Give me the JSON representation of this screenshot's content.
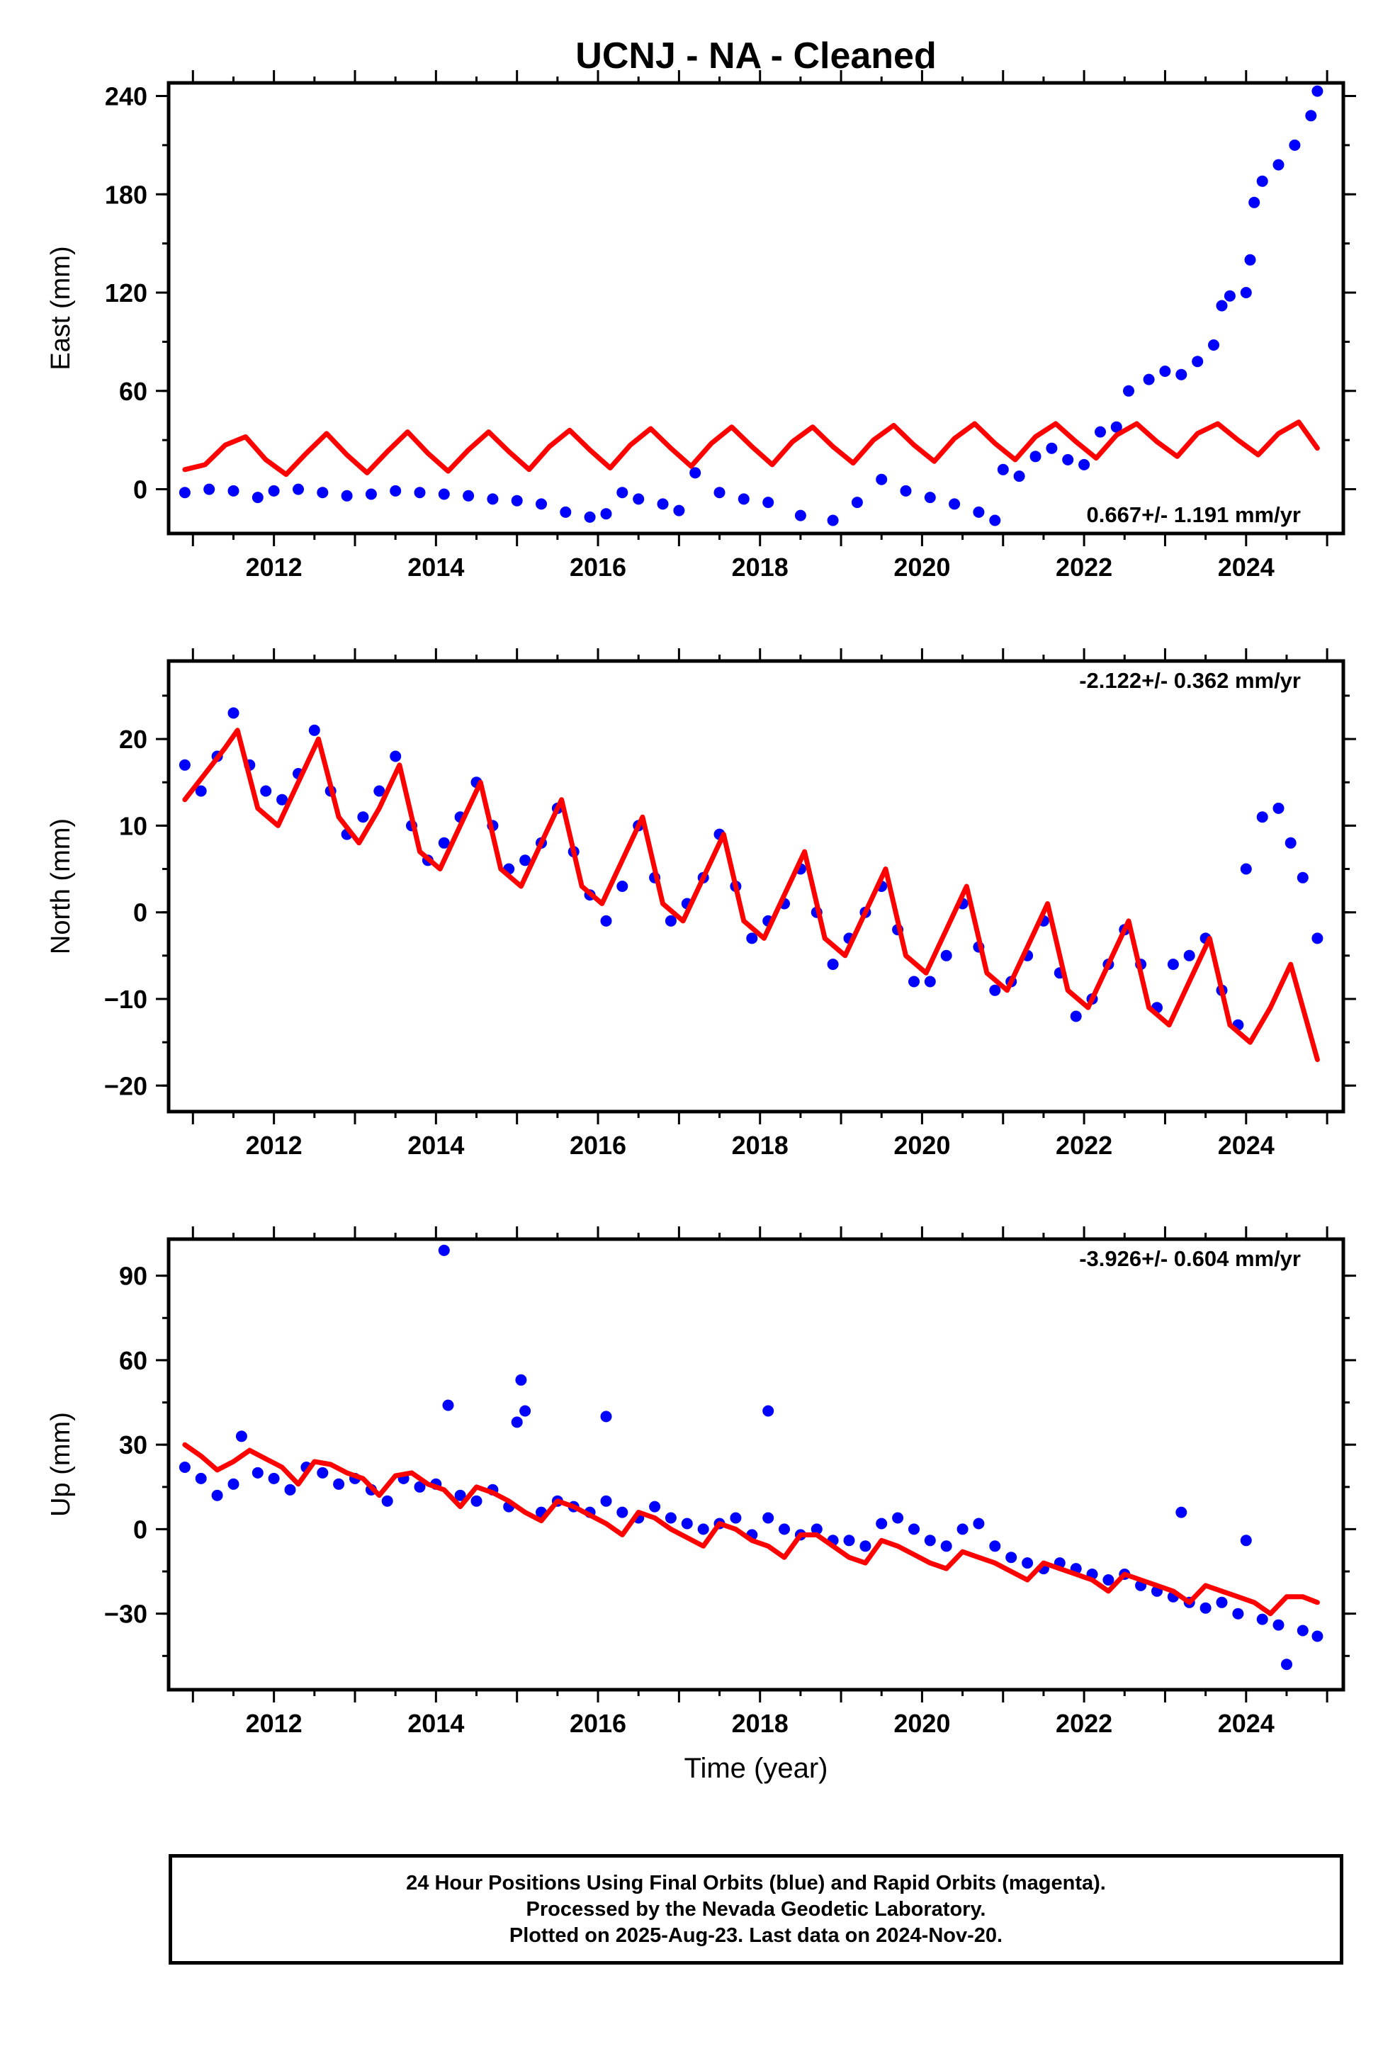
{
  "title": "UCNJ  - NA - Cleaned",
  "colors": {
    "final_orbits": "#0000ff",
    "model": "#ff0000",
    "frame": "#000000",
    "background": "#ffffff"
  },
  "chart_data": [
    {
      "type": "scatter",
      "ylabel": "East (mm)",
      "xlabel": "",
      "xlim": [
        2010.7,
        2025.2
      ],
      "ylim": [
        -27,
        248
      ],
      "xticks": [
        2012,
        2014,
        2016,
        2018,
        2020,
        2022,
        2024
      ],
      "xtick_labels": [
        "2012",
        "2014",
        "2016",
        "2018",
        "2020",
        "2022",
        "2024"
      ],
      "yticks": [
        0,
        60,
        120,
        180,
        240
      ],
      "ytick_labels": [
        "0",
        "60",
        "120",
        "180",
        "240"
      ],
      "rate_label": "0.667+/- 1.191 mm/yr",
      "rate_label_position": "bottom-right",
      "series": [
        {
          "role": "observations",
          "color": "#0000ff",
          "x": [
            2010.9,
            2011.2,
            2011.5,
            2011.8,
            2012.0,
            2012.3,
            2012.6,
            2012.9,
            2013.2,
            2013.5,
            2013.8,
            2014.1,
            2014.4,
            2014.7,
            2015.0,
            2015.3,
            2015.6,
            2015.9,
            2016.1,
            2016.3,
            2016.5,
            2016.8,
            2017.0,
            2017.2,
            2017.5,
            2017.8,
            2018.1,
            2018.5,
            2018.9,
            2019.2,
            2019.5,
            2019.8,
            2020.1,
            2020.4,
            2020.7,
            2020.9,
            2021.0,
            2021.2,
            2021.4,
            2021.6,
            2021.8,
            2022.0,
            2022.2,
            2022.4,
            2022.55,
            2022.8,
            2023.0,
            2023.2,
            2023.4,
            2023.6,
            2023.7,
            2023.8,
            2024.0,
            2024.05,
            2024.1,
            2024.2,
            2024.4,
            2024.6,
            2024.8,
            2024.88
          ],
          "y": [
            -2,
            0,
            -1,
            -5,
            -1,
            0,
            -2,
            -4,
            -3,
            -1,
            -2,
            -3,
            -4,
            -6,
            -7,
            -9,
            -14,
            -17,
            -15,
            -2,
            -6,
            -9,
            -13,
            10,
            -2,
            -6,
            -8,
            -16,
            -19,
            -8,
            6,
            -1,
            -5,
            -9,
            -14,
            -19,
            12,
            8,
            20,
            25,
            18,
            15,
            35,
            38,
            60,
            67,
            72,
            70,
            78,
            88,
            112,
            118,
            120,
            140,
            175,
            188,
            198,
            210,
            228,
            243
          ]
        },
        {
          "role": "model",
          "color": "#ff0000",
          "x": [
            2010.9,
            2011.15,
            2011.4,
            2011.65,
            2011.9,
            2012.15,
            2012.4,
            2012.65,
            2012.9,
            2013.15,
            2013.4,
            2013.65,
            2013.9,
            2014.15,
            2014.4,
            2014.65,
            2014.9,
            2015.15,
            2015.4,
            2015.65,
            2015.9,
            2016.15,
            2016.4,
            2016.65,
            2016.9,
            2017.15,
            2017.4,
            2017.65,
            2017.9,
            2018.15,
            2018.4,
            2018.65,
            2018.9,
            2019.15,
            2019.4,
            2019.65,
            2019.9,
            2020.15,
            2020.4,
            2020.65,
            2020.9,
            2021.15,
            2021.4,
            2021.65,
            2021.9,
            2022.15,
            2022.4,
            2022.65,
            2022.9,
            2023.15,
            2023.4,
            2023.65,
            2023.9,
            2024.15,
            2024.4,
            2024.65,
            2024.88
          ],
          "y": [
            12,
            15,
            27,
            32,
            18,
            9,
            22,
            34,
            21,
            10,
            23,
            35,
            22,
            11,
            24,
            35,
            23,
            12,
            26,
            36,
            24,
            13,
            27,
            37,
            25,
            14,
            28,
            38,
            26,
            15,
            29,
            38,
            26,
            16,
            30,
            39,
            27,
            17,
            31,
            40,
            28,
            18,
            32,
            40,
            29,
            19,
            33,
            40,
            29,
            20,
            34,
            40,
            30,
            21,
            34,
            41,
            25
          ]
        }
      ]
    },
    {
      "type": "scatter",
      "ylabel": "North (mm)",
      "xlabel": "",
      "xlim": [
        2010.7,
        2025.2
      ],
      "ylim": [
        -23,
        29
      ],
      "xticks": [
        2012,
        2014,
        2016,
        2018,
        2020,
        2022,
        2024
      ],
      "xtick_labels": [
        "2012",
        "2014",
        "2016",
        "2018",
        "2020",
        "2022",
        "2024"
      ],
      "yticks": [
        -20,
        -10,
        0,
        10,
        20
      ],
      "ytick_labels": [
        "−20",
        "−10",
        "0",
        "10",
        "20"
      ],
      "rate_label": "-2.122+/- 0.362 mm/yr",
      "rate_label_position": "top-right",
      "series": [
        {
          "role": "observations",
          "color": "#0000ff",
          "x": [
            2010.9,
            2011.1,
            2011.3,
            2011.5,
            2011.7,
            2011.9,
            2012.1,
            2012.3,
            2012.5,
            2012.7,
            2012.9,
            2013.1,
            2013.3,
            2013.5,
            2013.7,
            2013.9,
            2014.1,
            2014.3,
            2014.5,
            2014.7,
            2014.9,
            2015.1,
            2015.3,
            2015.5,
            2015.7,
            2015.9,
            2016.1,
            2016.3,
            2016.5,
            2016.7,
            2016.9,
            2017.1,
            2017.3,
            2017.5,
            2017.7,
            2017.9,
            2018.1,
            2018.3,
            2018.5,
            2018.7,
            2018.9,
            2019.1,
            2019.3,
            2019.5,
            2019.7,
            2019.9,
            2020.1,
            2020.3,
            2020.5,
            2020.7,
            2020.9,
            2021.1,
            2021.3,
            2021.5,
            2021.7,
            2021.9,
            2022.1,
            2022.3,
            2022.5,
            2022.7,
            2022.9,
            2023.1,
            2023.3,
            2023.5,
            2023.7,
            2023.9,
            2024.0,
            2024.2,
            2024.4,
            2024.55,
            2024.7,
            2024.88
          ],
          "y": [
            17,
            14,
            18,
            23,
            17,
            14,
            13,
            16,
            21,
            14,
            9,
            11,
            14,
            18,
            10,
            6,
            8,
            11,
            15,
            10,
            5,
            6,
            8,
            12,
            7,
            2,
            -1,
            3,
            10,
            4,
            -1,
            1,
            4,
            9,
            3,
            -3,
            -1,
            1,
            5,
            0,
            -6,
            -3,
            0,
            3,
            -2,
            -8,
            -8,
            -5,
            1,
            -4,
            -9,
            -8,
            -5,
            -1,
            -7,
            -12,
            -10,
            -6,
            -2,
            -6,
            -11,
            -6,
            -5,
            -3,
            -9,
            -13,
            5,
            11,
            12,
            8,
            4,
            -3
          ]
        },
        {
          "role": "model",
          "color": "#ff0000",
          "x": [
            2010.9,
            2011.15,
            2011.4,
            2011.55,
            2011.8,
            2012.05,
            2012.3,
            2012.55,
            2012.8,
            2013.05,
            2013.3,
            2013.55,
            2013.8,
            2014.05,
            2014.3,
            2014.55,
            2014.8,
            2015.05,
            2015.3,
            2015.55,
            2015.8,
            2016.05,
            2016.3,
            2016.55,
            2016.8,
            2017.05,
            2017.3,
            2017.55,
            2017.8,
            2018.05,
            2018.3,
            2018.55,
            2018.8,
            2019.05,
            2019.3,
            2019.55,
            2019.8,
            2020.05,
            2020.3,
            2020.55,
            2020.8,
            2021.05,
            2021.3,
            2021.55,
            2021.8,
            2022.05,
            2022.3,
            2022.55,
            2022.8,
            2023.05,
            2023.3,
            2023.55,
            2023.8,
            2024.05,
            2024.3,
            2024.55,
            2024.88
          ],
          "y": [
            13,
            16,
            19,
            21,
            12,
            10,
            15,
            20,
            11,
            8,
            12,
            17,
            7,
            5,
            10,
            15,
            5,
            3,
            8,
            13,
            3,
            1,
            6,
            11,
            1,
            -1,
            4,
            9,
            -1,
            -3,
            2,
            7,
            -3,
            -5,
            0,
            5,
            -5,
            -7,
            -2,
            3,
            -7,
            -9,
            -4,
            1,
            -9,
            -11,
            -6,
            -1,
            -11,
            -13,
            -8,
            -3,
            -13,
            -15,
            -11,
            -6,
            -17
          ]
        }
      ]
    },
    {
      "type": "scatter",
      "ylabel": "Up (mm)",
      "xlabel": "Time (year)",
      "xlim": [
        2010.7,
        2025.2
      ],
      "ylim": [
        -57,
        103
      ],
      "xticks": [
        2012,
        2014,
        2016,
        2018,
        2020,
        2022,
        2024
      ],
      "xtick_labels": [
        "2012",
        "2014",
        "2016",
        "2018",
        "2020",
        "2022",
        "2024"
      ],
      "yticks": [
        -30,
        0,
        30,
        60,
        90
      ],
      "ytick_labels": [
        "−30",
        "0",
        "30",
        "60",
        "90"
      ],
      "rate_label": "-3.926+/- 0.604 mm/yr",
      "rate_label_position": "top-right",
      "series": [
        {
          "role": "observations",
          "color": "#0000ff",
          "x": [
            2010.9,
            2011.1,
            2011.3,
            2011.5,
            2011.6,
            2011.8,
            2012.0,
            2012.2,
            2012.4,
            2012.6,
            2012.8,
            2013.0,
            2013.2,
            2013.4,
            2013.6,
            2013.8,
            2014.0,
            2014.1,
            2014.15,
            2014.3,
            2014.5,
            2014.7,
            2014.9,
            2015.0,
            2015.05,
            2015.1,
            2015.3,
            2015.5,
            2015.7,
            2015.9,
            2016.1,
            2016.1,
            2016.3,
            2016.5,
            2016.7,
            2016.9,
            2017.1,
            2017.3,
            2017.5,
            2017.7,
            2017.9,
            2018.1,
            2018.1,
            2018.3,
            2018.5,
            2018.7,
            2018.9,
            2019.1,
            2019.3,
            2019.5,
            2019.7,
            2019.9,
            2020.1,
            2020.3,
            2020.5,
            2020.7,
            2020.9,
            2021.1,
            2021.3,
            2021.5,
            2021.7,
            2021.9,
            2022.1,
            2022.3,
            2022.5,
            2022.7,
            2022.9,
            2023.1,
            2023.2,
            2023.3,
            2023.5,
            2023.7,
            2023.9,
            2024.0,
            2024.2,
            2024.4,
            2024.5,
            2024.7,
            2024.88
          ],
          "y": [
            22,
            18,
            12,
            16,
            33,
            20,
            18,
            14,
            22,
            20,
            16,
            18,
            14,
            10,
            18,
            15,
            16,
            99,
            44,
            12,
            10,
            14,
            8,
            38,
            53,
            42,
            6,
            10,
            8,
            6,
            10,
            40,
            6,
            4,
            8,
            4,
            2,
            0,
            2,
            4,
            -2,
            4,
            42,
            0,
            -2,
            0,
            -4,
            -4,
            -6,
            2,
            4,
            0,
            -4,
            -6,
            0,
            2,
            -6,
            -10,
            -12,
            -14,
            -12,
            -14,
            -16,
            -18,
            -16,
            -20,
            -22,
            -24,
            6,
            -26,
            -28,
            -26,
            -30,
            -4,
            -32,
            -34,
            -48,
            -36,
            -38
          ]
        },
        {
          "role": "model",
          "color": "#ff0000",
          "x": [
            2010.9,
            2011.1,
            2011.3,
            2011.5,
            2011.7,
            2011.9,
            2012.1,
            2012.3,
            2012.5,
            2012.7,
            2012.9,
            2013.1,
            2013.3,
            2013.5,
            2013.7,
            2013.9,
            2014.1,
            2014.3,
            2014.5,
            2014.7,
            2014.9,
            2015.1,
            2015.3,
            2015.5,
            2015.7,
            2015.9,
            2016.1,
            2016.3,
            2016.5,
            2016.7,
            2016.9,
            2017.1,
            2017.3,
            2017.5,
            2017.7,
            2017.9,
            2018.1,
            2018.3,
            2018.5,
            2018.7,
            2018.9,
            2019.1,
            2019.3,
            2019.5,
            2019.7,
            2019.9,
            2020.1,
            2020.3,
            2020.5,
            2020.7,
            2020.9,
            2021.1,
            2021.3,
            2021.5,
            2021.7,
            2021.9,
            2022.1,
            2022.3,
            2022.5,
            2022.7,
            2022.9,
            2023.1,
            2023.3,
            2023.5,
            2023.7,
            2023.9,
            2024.1,
            2024.3,
            2024.5,
            2024.7,
            2024.88
          ],
          "y": [
            30,
            26,
            21,
            24,
            28,
            25,
            22,
            16,
            24,
            23,
            20,
            18,
            12,
            19,
            20,
            16,
            14,
            8,
            15,
            13,
            10,
            6,
            3,
            10,
            8,
            5,
            2,
            -2,
            6,
            4,
            0,
            -3,
            -6,
            2,
            0,
            -4,
            -6,
            -10,
            -2,
            -2,
            -6,
            -10,
            -12,
            -4,
            -6,
            -9,
            -12,
            -14,
            -8,
            -10,
            -12,
            -15,
            -18,
            -12,
            -14,
            -16,
            -18,
            -22,
            -16,
            -18,
            -20,
            -22,
            -26,
            -20,
            -22,
            -24,
            -26,
            -30,
            -24,
            -24,
            -26
          ]
        }
      ]
    }
  ],
  "footer": {
    "line1": "24 Hour Positions Using Final Orbits (blue) and Rapid Orbits (magenta).",
    "line2": "Processed by the Nevada Geodetic Laboratory.",
    "line3": "Plotted on 2025-Aug-23. Last data on 2024-Nov-20."
  }
}
